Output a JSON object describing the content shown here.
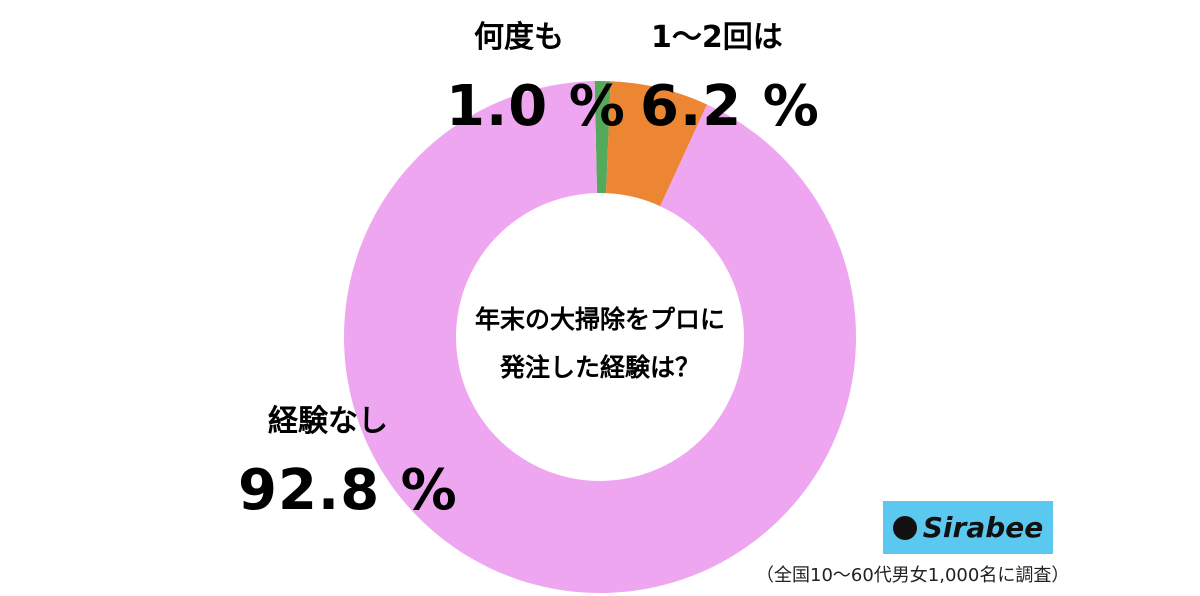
{
  "chart_data": {
    "type": "pie",
    "donut": true,
    "title": "年末の大掃除をプロに発注した経験は？",
    "title_lines": [
      "年末の大掃除をプロに",
      "発注した経験は？"
    ],
    "slices": [
      {
        "label": "何度も",
        "value": 1.0,
        "display": "1.0 %",
        "color": "#55a95a"
      },
      {
        "label": "1〜2回は",
        "value": 6.2,
        "display": "6.2 %",
        "color": "#ec8633"
      },
      {
        "label": "経験なし",
        "value": 92.8,
        "display": "92.8 %",
        "color": "#efa6f1"
      }
    ]
  },
  "logo": "Sirabee",
  "note": "（全国10〜60代男女1,000名に調査）"
}
